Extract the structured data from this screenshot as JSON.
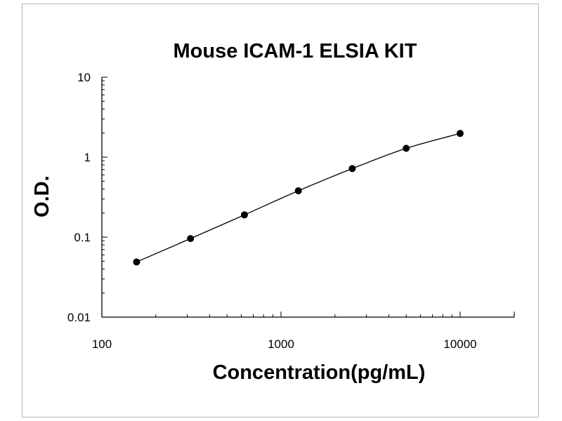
{
  "chart_data": {
    "type": "scatter",
    "title": "Mouse ICAM-1 ELSIA KIT",
    "xlabel": "Concentration(pg/mL)",
    "ylabel": "O.D.",
    "x_scale": "log",
    "y_scale": "log",
    "xlim": [
      100,
      20000
    ],
    "ylim": [
      0.01,
      10
    ],
    "x_ticks": [
      "100",
      "1000",
      "10000"
    ],
    "y_ticks": [
      "0.01",
      "0.1",
      "1",
      "10"
    ],
    "grid": false,
    "legend": "none",
    "series": [
      {
        "x": [
          156.25,
          312.5,
          625,
          1250,
          2500,
          5000,
          10000
        ],
        "y": [
          0.049,
          0.096,
          0.19,
          0.38,
          0.72,
          1.29,
          1.98
        ]
      }
    ],
    "fit_curve": true,
    "marker_color": "#000000",
    "line_color": "#000000"
  }
}
